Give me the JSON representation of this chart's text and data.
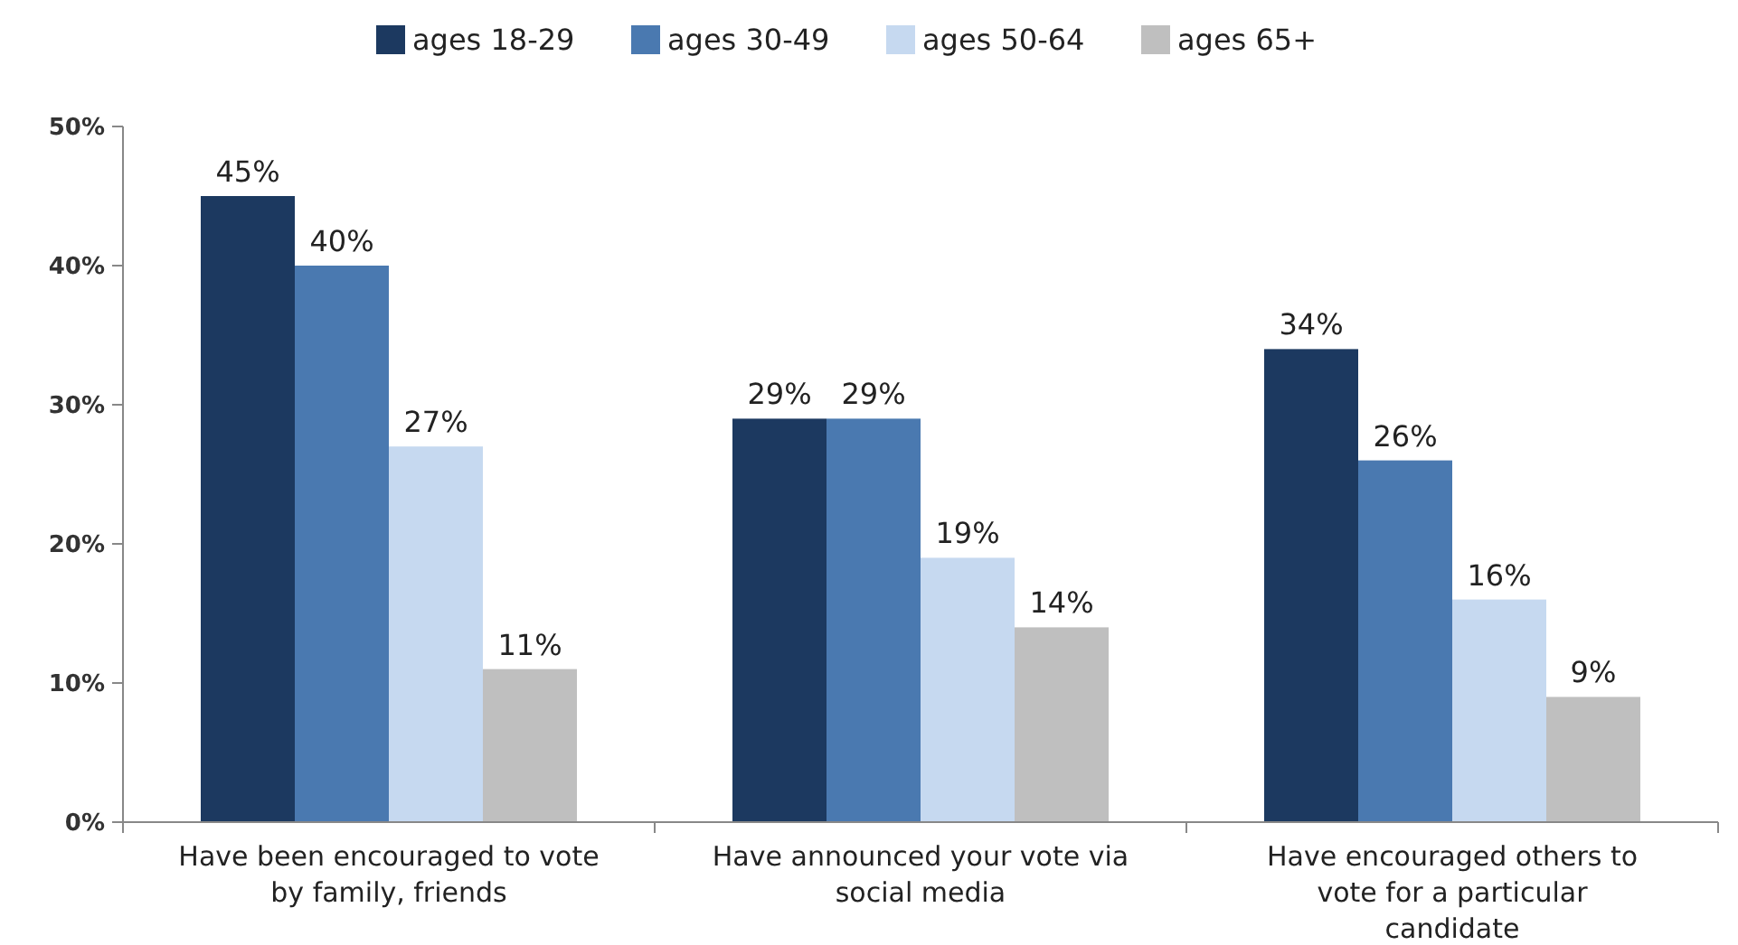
{
  "chart_data": {
    "type": "bar",
    "categories": [
      "Have been encouraged to vote by family, friends",
      "Have announced your vote via social media",
      "Have encouraged others to vote for a particular candidate"
    ],
    "series": [
      {
        "name": "ages 18-29",
        "color": "#1c3960",
        "values": [
          45,
          29,
          34
        ]
      },
      {
        "name": "ages 30-49",
        "color": "#4a79b0",
        "values": [
          40,
          29,
          26
        ]
      },
      {
        "name": "ages 50-64",
        "color": "#c6d9f0",
        "values": [
          27,
          19,
          16
        ]
      },
      {
        "name": "ages 65+",
        "color": "#bfbfbf",
        "values": [
          11,
          14,
          9
        ]
      }
    ],
    "ylim": [
      0,
      50
    ],
    "yticks": [
      {
        "value": 0,
        "label": "0%"
      },
      {
        "value": 10,
        "label": "10%"
      },
      {
        "value": 20,
        "label": "20%"
      },
      {
        "value": 30,
        "label": "30%"
      },
      {
        "value": 40,
        "label": "40%"
      },
      {
        "value": 50,
        "label": "50%"
      }
    ],
    "value_labels": [
      [
        "45%",
        "29%",
        "34%"
      ],
      [
        "40%",
        "29%",
        "26%"
      ],
      [
        "27%",
        "19%",
        "16%"
      ],
      [
        "11%",
        "14%",
        "9%"
      ]
    ],
    "legend": "top",
    "grid": false
  }
}
